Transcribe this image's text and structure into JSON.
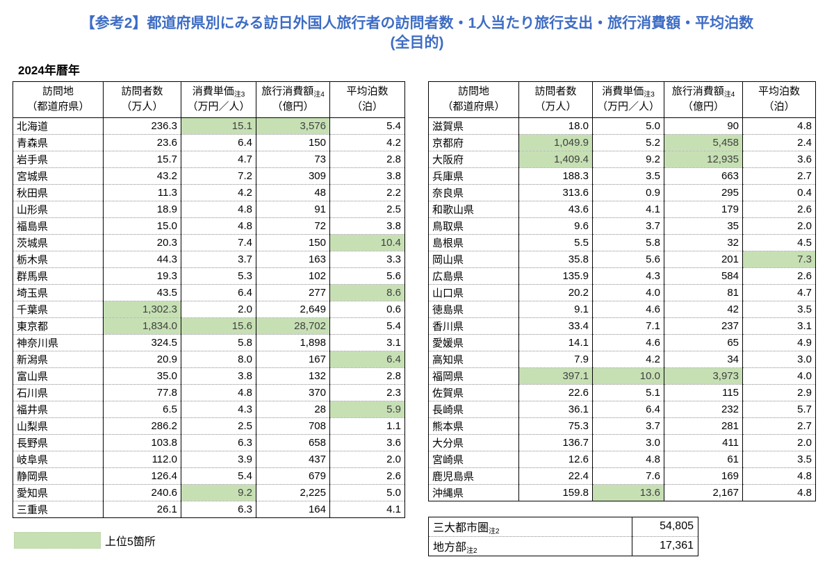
{
  "title": "【参考2】都道府県別にみる訪日外国人旅行者の訪問者数・1人当たり旅行支出・旅行消費額・平均泊数",
  "title_line2": "(全目的)",
  "year_label": "2024年暦年",
  "colors": {
    "highlight": "#c6e0b4",
    "highlight_text": "#404040",
    "title_blue": "#3d6cc4"
  },
  "headers": {
    "col1": {
      "line1": "訪問地",
      "line2": "（都道府県）"
    },
    "col2": {
      "line1": "訪問者数",
      "line2": "（万人）"
    },
    "col3": {
      "line1": "消費単価",
      "note": "注3",
      "line2": "（万円／人）"
    },
    "col4": {
      "line1": "旅行消費額",
      "note": "注4",
      "line2": "（億円）"
    },
    "col5": {
      "line1": "平均泊数",
      "line2": "（泊）"
    }
  },
  "left_table": {
    "rows": [
      {
        "name": "北海道",
        "visitors": "236.3",
        "unit_price": "15.1",
        "consumption": "3,576",
        "nights": "5.4",
        "hl": [
          "unit_price",
          "consumption"
        ]
      },
      {
        "name": "青森県",
        "visitors": "23.6",
        "unit_price": "6.4",
        "consumption": "150",
        "nights": "4.2",
        "hl": []
      },
      {
        "name": "岩手県",
        "visitors": "15.7",
        "unit_price": "4.7",
        "consumption": "73",
        "nights": "2.8",
        "hl": []
      },
      {
        "name": "宮城県",
        "visitors": "43.2",
        "unit_price": "7.2",
        "consumption": "309",
        "nights": "3.8",
        "hl": []
      },
      {
        "name": "秋田県",
        "visitors": "11.3",
        "unit_price": "4.2",
        "consumption": "48",
        "nights": "2.2",
        "hl": []
      },
      {
        "name": "山形県",
        "visitors": "18.9",
        "unit_price": "4.8",
        "consumption": "91",
        "nights": "2.5",
        "hl": []
      },
      {
        "name": "福島県",
        "visitors": "15.0",
        "unit_price": "4.8",
        "consumption": "72",
        "nights": "3.8",
        "hl": []
      },
      {
        "name": "茨城県",
        "visitors": "20.3",
        "unit_price": "7.4",
        "consumption": "150",
        "nights": "10.4",
        "hl": [
          "nights"
        ]
      },
      {
        "name": "栃木県",
        "visitors": "44.3",
        "unit_price": "3.7",
        "consumption": "163",
        "nights": "3.3",
        "hl": []
      },
      {
        "name": "群馬県",
        "visitors": "19.3",
        "unit_price": "5.3",
        "consumption": "102",
        "nights": "5.6",
        "hl": []
      },
      {
        "name": "埼玉県",
        "visitors": "43.5",
        "unit_price": "6.4",
        "consumption": "277",
        "nights": "8.6",
        "hl": [
          "nights"
        ]
      },
      {
        "name": "千葉県",
        "visitors": "1,302.3",
        "unit_price": "2.0",
        "consumption": "2,649",
        "nights": "0.6",
        "hl": [
          "visitors"
        ]
      },
      {
        "name": "東京都",
        "visitors": "1,834.0",
        "unit_price": "15.6",
        "consumption": "28,702",
        "nights": "5.4",
        "hl": [
          "visitors",
          "unit_price",
          "consumption"
        ]
      },
      {
        "name": "神奈川県",
        "visitors": "324.5",
        "unit_price": "5.8",
        "consumption": "1,898",
        "nights": "3.1",
        "hl": []
      },
      {
        "name": "新潟県",
        "visitors": "20.9",
        "unit_price": "8.0",
        "consumption": "167",
        "nights": "6.4",
        "hl": [
          "nights"
        ]
      },
      {
        "name": "富山県",
        "visitors": "35.0",
        "unit_price": "3.8",
        "consumption": "132",
        "nights": "2.8",
        "hl": []
      },
      {
        "name": "石川県",
        "visitors": "77.8",
        "unit_price": "4.8",
        "consumption": "370",
        "nights": "2.3",
        "hl": []
      },
      {
        "name": "福井県",
        "visitors": "6.5",
        "unit_price": "4.3",
        "consumption": "28",
        "nights": "5.9",
        "hl": [
          "nights"
        ]
      },
      {
        "name": "山梨県",
        "visitors": "286.2",
        "unit_price": "2.5",
        "consumption": "708",
        "nights": "1.1",
        "hl": []
      },
      {
        "name": "長野県",
        "visitors": "103.8",
        "unit_price": "6.3",
        "consumption": "658",
        "nights": "3.6",
        "hl": []
      },
      {
        "name": "岐阜県",
        "visitors": "112.0",
        "unit_price": "3.9",
        "consumption": "437",
        "nights": "2.0",
        "hl": []
      },
      {
        "name": "静岡県",
        "visitors": "126.4",
        "unit_price": "5.4",
        "consumption": "679",
        "nights": "2.6",
        "hl": []
      },
      {
        "name": "愛知県",
        "visitors": "240.6",
        "unit_price": "9.2",
        "consumption": "2,225",
        "nights": "5.0",
        "hl": [
          "unit_price"
        ]
      },
      {
        "name": "三重県",
        "visitors": "26.1",
        "unit_price": "6.3",
        "consumption": "164",
        "nights": "4.1",
        "hl": []
      }
    ]
  },
  "right_table": {
    "rows": [
      {
        "name": "滋賀県",
        "visitors": "18.0",
        "unit_price": "5.0",
        "consumption": "90",
        "nights": "4.8",
        "hl": []
      },
      {
        "name": "京都府",
        "visitors": "1,049.9",
        "unit_price": "5.2",
        "consumption": "5,458",
        "nights": "2.4",
        "hl": [
          "visitors",
          "consumption"
        ]
      },
      {
        "name": "大阪府",
        "visitors": "1,409.4",
        "unit_price": "9.2",
        "consumption": "12,935",
        "nights": "3.6",
        "hl": [
          "visitors",
          "consumption"
        ]
      },
      {
        "name": "兵庫県",
        "visitors": "188.3",
        "unit_price": "3.5",
        "consumption": "663",
        "nights": "2.7",
        "hl": []
      },
      {
        "name": "奈良県",
        "visitors": "313.6",
        "unit_price": "0.9",
        "consumption": "295",
        "nights": "0.4",
        "hl": []
      },
      {
        "name": "和歌山県",
        "visitors": "43.6",
        "unit_price": "4.1",
        "consumption": "179",
        "nights": "2.6",
        "hl": []
      },
      {
        "name": "鳥取県",
        "visitors": "9.6",
        "unit_price": "3.7",
        "consumption": "35",
        "nights": "2.0",
        "hl": []
      },
      {
        "name": "島根県",
        "visitors": "5.5",
        "unit_price": "5.8",
        "consumption": "32",
        "nights": "4.5",
        "hl": []
      },
      {
        "name": "岡山県",
        "visitors": "35.8",
        "unit_price": "5.6",
        "consumption": "201",
        "nights": "7.3",
        "hl": [
          "nights"
        ]
      },
      {
        "name": "広島県",
        "visitors": "135.9",
        "unit_price": "4.3",
        "consumption": "584",
        "nights": "2.6",
        "hl": []
      },
      {
        "name": "山口県",
        "visitors": "20.2",
        "unit_price": "4.0",
        "consumption": "81",
        "nights": "4.7",
        "hl": []
      },
      {
        "name": "徳島県",
        "visitors": "9.1",
        "unit_price": "4.6",
        "consumption": "42",
        "nights": "3.5",
        "hl": []
      },
      {
        "name": "香川県",
        "visitors": "33.4",
        "unit_price": "7.1",
        "consumption": "237",
        "nights": "3.1",
        "hl": []
      },
      {
        "name": "愛媛県",
        "visitors": "14.1",
        "unit_price": "4.6",
        "consumption": "65",
        "nights": "4.9",
        "hl": []
      },
      {
        "name": "高知県",
        "visitors": "7.9",
        "unit_price": "4.2",
        "consumption": "34",
        "nights": "3.0",
        "hl": []
      },
      {
        "name": "福岡県",
        "visitors": "397.1",
        "unit_price": "10.0",
        "consumption": "3,973",
        "nights": "4.0",
        "hl": [
          "visitors",
          "unit_price",
          "consumption"
        ]
      },
      {
        "name": "佐賀県",
        "visitors": "22.6",
        "unit_price": "5.1",
        "consumption": "115",
        "nights": "2.9",
        "hl": []
      },
      {
        "name": "長崎県",
        "visitors": "36.1",
        "unit_price": "6.4",
        "consumption": "232",
        "nights": "5.7",
        "hl": []
      },
      {
        "name": "熊本県",
        "visitors": "75.3",
        "unit_price": "3.7",
        "consumption": "281",
        "nights": "2.7",
        "hl": []
      },
      {
        "name": "大分県",
        "visitors": "136.7",
        "unit_price": "3.0",
        "consumption": "411",
        "nights": "2.0",
        "hl": []
      },
      {
        "name": "宮崎県",
        "visitors": "12.6",
        "unit_price": "4.8",
        "consumption": "61",
        "nights": "3.5",
        "hl": []
      },
      {
        "name": "鹿児島県",
        "visitors": "22.4",
        "unit_price": "7.6",
        "consumption": "169",
        "nights": "4.8",
        "hl": []
      },
      {
        "name": "沖縄県",
        "visitors": "159.8",
        "unit_price": "13.6",
        "consumption": "2,167",
        "nights": "4.8",
        "hl": [
          "unit_price"
        ]
      }
    ]
  },
  "legend": {
    "label": "上位5箇所"
  },
  "summary": {
    "rows": [
      {
        "label": "三大都市圏",
        "note": "注2",
        "value": "54,805"
      },
      {
        "label": "地方部",
        "note": "注2",
        "value": "17,361"
      }
    ]
  }
}
